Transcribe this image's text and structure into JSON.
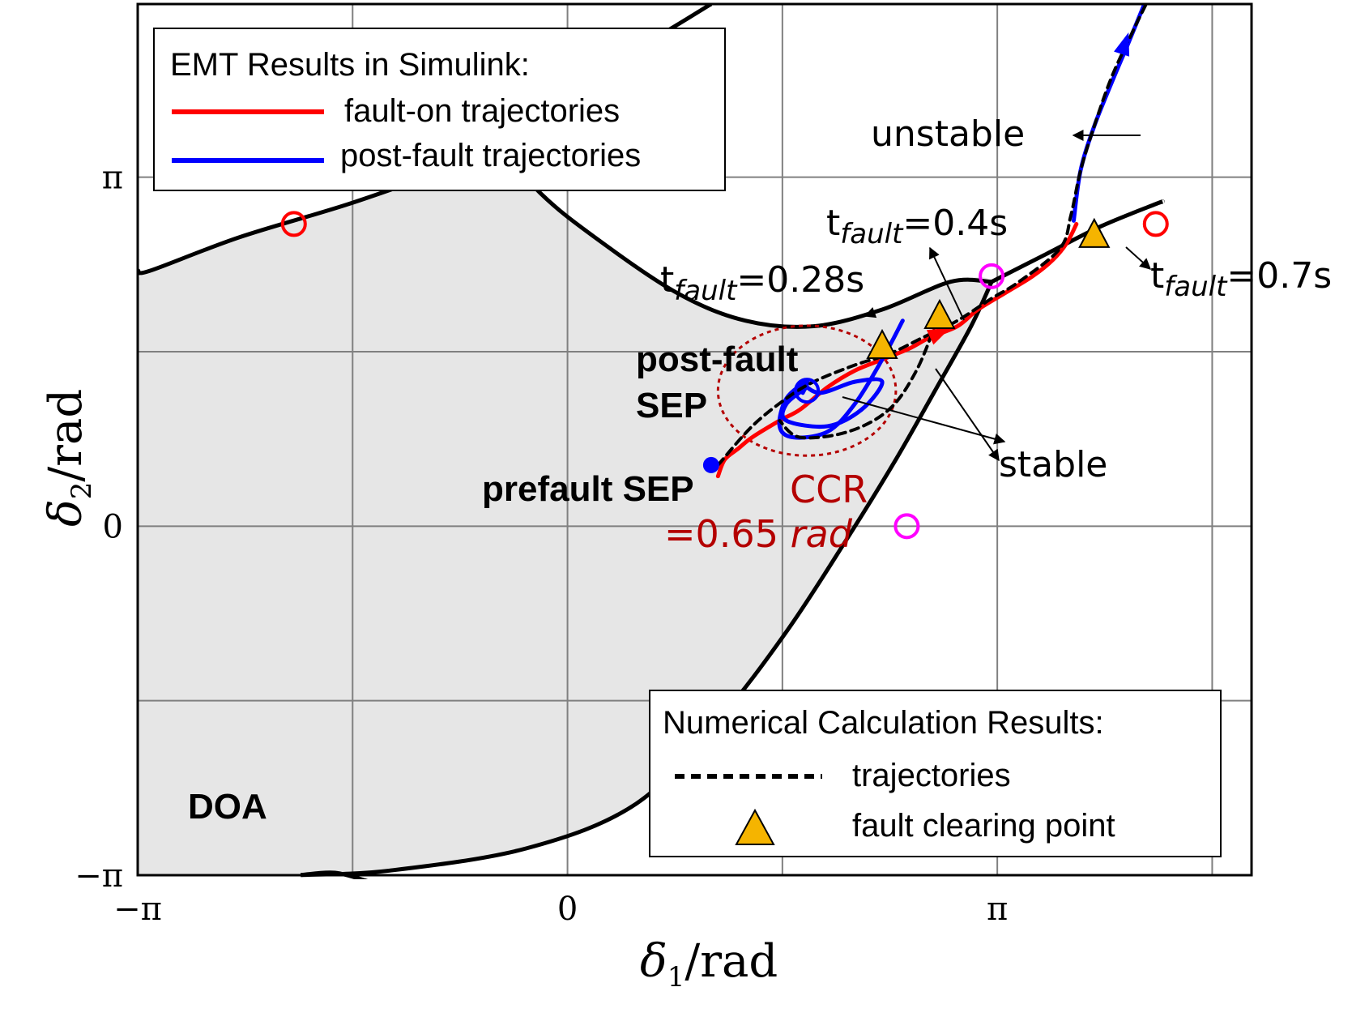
{
  "chart_data": {
    "type": "line",
    "title": "",
    "xlabel": "δ1/rad",
    "ylabel": "δ2/rad",
    "xlim": [
      -3.1416,
      5.0
    ],
    "ylim": [
      -3.1416,
      4.7
    ],
    "xticks": [
      {
        "value": -3.1416,
        "label": "−π"
      },
      {
        "value": 0,
        "label": "0"
      },
      {
        "value": 3.1416,
        "label": "π"
      }
    ],
    "yticks": [
      {
        "value": -3.1416,
        "label": "−π"
      },
      {
        "value": 0,
        "label": "0"
      },
      {
        "value": 3.1416,
        "label": "π"
      }
    ],
    "grid": true,
    "region": {
      "label": "DOA",
      "fill": "#e6e6e6",
      "outline": [
        [
          -3.14,
          2.2
        ],
        [
          -3.05,
          2.3
        ],
        [
          -2.4,
          2.6
        ],
        [
          -1.6,
          2.9
        ],
        [
          -0.9,
          3.2
        ],
        [
          -0.55,
          3.5
        ],
        [
          -0.2,
          3.0
        ],
        [
          0.2,
          2.6
        ],
        [
          0.8,
          2.1
        ],
        [
          1.3,
          1.85
        ],
        [
          1.8,
          1.8
        ],
        [
          2.3,
          1.95
        ],
        [
          2.8,
          2.2
        ],
        [
          3.1,
          2.2
        ],
        [
          2.95,
          1.8
        ],
        [
          2.7,
          1.25
        ],
        [
          2.4,
          0.6
        ],
        [
          2.05,
          -0.1
        ],
        [
          1.6,
          -0.95
        ],
        [
          1.1,
          -1.75
        ],
        [
          0.5,
          -2.5
        ],
        [
          -0.3,
          -2.9
        ],
        [
          -1.3,
          -3.1
        ],
        [
          -1.95,
          -3.14
        ],
        [
          -3.14,
          -3.14
        ]
      ]
    },
    "boundaries": [
      {
        "name": "upper-manifold",
        "points": [
          [
            -0.9,
            3.2
          ],
          [
            -0.2,
            3.9
          ],
          [
            0.5,
            4.3
          ],
          [
            1.05,
            4.7
          ]
        ]
      },
      {
        "name": "left-upper-line",
        "points": [
          [
            -3.14,
            2.3
          ],
          [
            -3.05,
            2.3
          ],
          [
            -2.4,
            2.6
          ],
          [
            -1.6,
            2.9
          ],
          [
            -0.9,
            3.2
          ]
        ]
      },
      {
        "name": "bowl-curve",
        "points": [
          [
            -0.55,
            3.5
          ],
          [
            -0.2,
            3.0
          ],
          [
            0.2,
            2.6
          ],
          [
            0.8,
            2.1
          ],
          [
            1.3,
            1.85
          ],
          [
            1.8,
            1.8
          ],
          [
            2.3,
            1.95
          ],
          [
            2.8,
            2.2
          ],
          [
            3.1,
            2.2
          ]
        ]
      },
      {
        "name": "right-line",
        "points": [
          [
            3.1,
            2.2
          ],
          [
            3.5,
            2.45
          ],
          [
            3.9,
            2.7
          ],
          [
            4.3,
            2.9
          ],
          [
            4.35,
            2.92
          ]
        ]
      },
      {
        "name": "lower-manifold",
        "points": [
          [
            3.1,
            2.2
          ],
          [
            2.95,
            1.8
          ],
          [
            2.7,
            1.25
          ],
          [
            2.4,
            0.6
          ],
          [
            2.05,
            -0.1
          ],
          [
            1.6,
            -0.95
          ],
          [
            1.1,
            -1.75
          ],
          [
            0.5,
            -2.5
          ],
          [
            -0.3,
            -2.9
          ],
          [
            -1.3,
            -3.1
          ],
          [
            -1.95,
            -3.14
          ]
        ]
      },
      {
        "name": "bottom-hook",
        "points": [
          [
            -1.95,
            -3.14
          ],
          [
            -1.7,
            -3.12
          ],
          [
            -1.45,
            -3.2
          ]
        ]
      }
    ],
    "series": [
      {
        "name": "fault-on trajectories",
        "color": "#ff0000",
        "style": "solid",
        "points": [
          [
            1.1,
            0.45
          ],
          [
            1.15,
            0.6
          ],
          [
            1.25,
            0.7
          ],
          [
            1.35,
            0.8
          ],
          [
            1.55,
            0.95
          ],
          [
            1.7,
            1.05
          ],
          [
            1.9,
            1.25
          ],
          [
            2.1,
            1.4
          ],
          [
            2.3,
            1.5
          ],
          [
            2.5,
            1.6
          ],
          [
            2.65,
            1.7
          ],
          [
            2.85,
            1.8
          ],
          [
            3.0,
            1.95
          ],
          [
            3.2,
            2.1
          ],
          [
            3.4,
            2.25
          ],
          [
            3.55,
            2.4
          ],
          [
            3.65,
            2.55
          ],
          [
            3.72,
            2.72
          ]
        ]
      },
      {
        "name": "post-fault trajectories",
        "color": "#0000ff",
        "style": "solid",
        "points": [
          [
            1.75,
            1.25
          ],
          [
            1.6,
            1.1
          ],
          [
            1.6,
            0.95
          ],
          [
            1.9,
            0.9
          ],
          [
            2.15,
            1.05
          ],
          [
            2.3,
            1.3
          ],
          [
            2.1,
            1.3
          ],
          [
            1.85,
            1.2
          ],
          [
            1.72,
            1.28
          ]
        ]
      },
      {
        "name": "post-fault-2",
        "color": "#0000ff",
        "style": "solid",
        "points": [
          [
            2.45,
            1.85
          ],
          [
            2.3,
            1.5
          ],
          [
            2.1,
            1.1
          ],
          [
            1.9,
            0.85
          ],
          [
            1.65,
            0.8
          ],
          [
            1.55,
            0.9
          ],
          [
            1.6,
            1.15
          ],
          [
            1.75,
            1.3
          ],
          [
            1.72,
            1.2
          ]
        ]
      },
      {
        "name": "post-fault-unstable",
        "color": "#0000ff",
        "style": "solid",
        "points": [
          [
            3.7,
            2.75
          ],
          [
            3.75,
            3.2
          ],
          [
            3.85,
            3.6
          ],
          [
            3.98,
            4.0
          ],
          [
            4.1,
            4.35
          ],
          [
            4.25,
            4.8
          ]
        ]
      },
      {
        "name": "numerical-1",
        "color": "#000000",
        "style": "dashed",
        "points": [
          [
            1.1,
            0.55
          ],
          [
            1.35,
            0.9
          ],
          [
            1.6,
            1.15
          ],
          [
            1.8,
            1.3
          ],
          [
            2.1,
            1.45
          ],
          [
            2.35,
            1.55
          ],
          [
            2.6,
            1.7
          ],
          [
            2.85,
            1.85
          ],
          [
            3.1,
            2.05
          ],
          [
            3.3,
            2.2
          ],
          [
            3.6,
            2.5
          ],
          [
            3.68,
            2.8
          ],
          [
            3.75,
            3.2
          ],
          [
            3.85,
            3.6
          ],
          [
            3.98,
            4.05
          ],
          [
            4.15,
            4.5
          ],
          [
            4.25,
            4.75
          ]
        ]
      },
      {
        "name": "numerical-2",
        "color": "#000000",
        "style": "dashed",
        "points": [
          [
            2.7,
            1.85
          ],
          [
            2.55,
            1.4
          ],
          [
            2.35,
            1.05
          ],
          [
            2.05,
            0.85
          ],
          [
            1.7,
            0.8
          ],
          [
            1.55,
            0.95
          ]
        ]
      }
    ],
    "points": [
      {
        "name": "prefault SEP",
        "x": 1.05,
        "y": 0.55,
        "marker": "filled-circle",
        "color": "#0000ff"
      },
      {
        "name": "post-fault SEP",
        "x": 1.75,
        "y": 1.22,
        "marker": "open-circle",
        "color": "#0000ff"
      },
      {
        "name": "UEP-left",
        "x": -2.0,
        "y": 2.72,
        "marker": "open-circle",
        "color": "#ff0000"
      },
      {
        "name": "UEP-right",
        "x": 4.3,
        "y": 2.72,
        "marker": "open-circle",
        "color": "#ff0000"
      },
      {
        "name": "saddle-top",
        "x": 3.1,
        "y": 2.25,
        "marker": "open-circle",
        "color": "#ff00ff"
      },
      {
        "name": "saddle-bottom",
        "x": 2.48,
        "y": 0.0,
        "marker": "open-circle",
        "color": "#ff00ff"
      },
      {
        "name": "clearing-0.28s",
        "x": 2.3,
        "y": 1.6,
        "marker": "triangle",
        "color": "#f5b400"
      },
      {
        "name": "clearing-0.4s",
        "x": 2.72,
        "y": 1.87,
        "marker": "triangle",
        "color": "#f5b400"
      },
      {
        "name": "clearing-0.7s",
        "x": 3.85,
        "y": 2.6,
        "marker": "triangle",
        "color": "#f5b400"
      }
    ],
    "ccr_circle": {
      "cx": 1.75,
      "cy": 1.22,
      "r": 0.65,
      "color": "#b40000"
    },
    "annotations": {
      "unstable": "unstable",
      "stable": "stable",
      "t_prefix": "t",
      "t_sub": "fault",
      "t028": "=0.28s",
      "t04": "=0.4s",
      "t07": "=0.7s",
      "post_fault_sep_line1": "post-fault",
      "post_fault_sep_line2": "SEP",
      "prefault_sep": "prefault SEP",
      "ccr_line1": "CCR",
      "ccr_line2_prefix": "=0.65 ",
      "ccr_line2_unit": "rad",
      "doa": "DOA"
    },
    "legend_emt": {
      "title": "EMT Results in Simulink:",
      "items": [
        {
          "label": "fault-on trajectories",
          "color": "#ff0000"
        },
        {
          "label": "post-fault trajectories",
          "color": "#0000ff"
        }
      ],
      "placement": "top-left"
    },
    "legend_num": {
      "title": "Numerical Calculation Results:",
      "items": [
        {
          "label": "trajectories",
          "marker": "dashed-line"
        },
        {
          "label": "fault clearing point",
          "marker": "triangle"
        }
      ],
      "placement": "bottom-right"
    }
  }
}
